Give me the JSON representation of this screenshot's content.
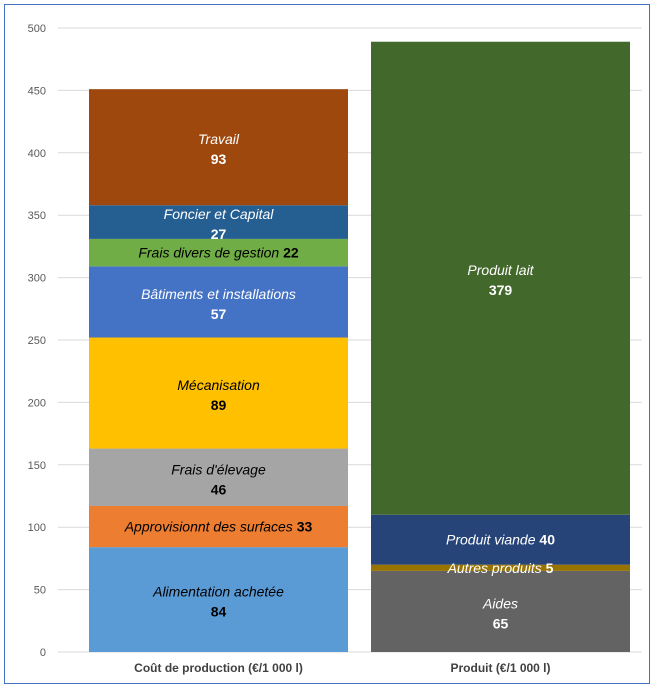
{
  "chart_data": {
    "type": "bar",
    "stacked": true,
    "categories": [
      "Coût de production (€/1 000 l)",
      "Produit (€/1 000 l)"
    ],
    "ylim": [
      0,
      500
    ],
    "yticks": [
      0,
      50,
      100,
      150,
      200,
      250,
      300,
      350,
      400,
      450,
      500
    ],
    "grid": true,
    "series": [
      {
        "stack": "Coût de production (€/1 000 l)",
        "segments": [
          {
            "label": "Alimentation achetée",
            "value": 84,
            "display": "84",
            "color": "#5b9bd5",
            "layout": "below",
            "text": "#000000"
          },
          {
            "label": "Approvisionnt des surfaces",
            "value": 33,
            "display": "33",
            "color": "#ed7d31",
            "layout": "inline",
            "text": "#000000"
          },
          {
            "label": "Frais d'élevage",
            "value": 46,
            "display": "46",
            "color": "#a5a5a5",
            "layout": "below",
            "text": "#000000"
          },
          {
            "label": "Mécanisation",
            "value": 89,
            "display": "89",
            "color": "#ffc000",
            "layout": "below",
            "text": "#000000"
          },
          {
            "label": "Bâtiments et installations",
            "value": 57,
            "display": "57",
            "color": "#4472c4",
            "layout": "below",
            "text": "#ffffff"
          },
          {
            "label": "Frais divers de gestion",
            "value": 22,
            "display": "22",
            "color": "#70ad47",
            "layout": "inline",
            "text": "#000000"
          },
          {
            "label": "Foncier et Capital",
            "value": 27,
            "display": "27",
            "color": "#255e91",
            "layout": "below",
            "text": "#ffffff"
          },
          {
            "label": "Travail",
            "value": 93,
            "display": "93",
            "color": "#9e480e",
            "layout": "below",
            "text": "#ffffff"
          }
        ]
      },
      {
        "stack": "Produit (€/1 000 l)",
        "segments": [
          {
            "label": "Aides",
            "value": 65,
            "display": "65",
            "color": "#636363",
            "layout": "below",
            "text": "#ffffff"
          },
          {
            "label": "Autres produits",
            "value": 5,
            "display": "5",
            "color": "#997300",
            "layout": "inline",
            "text": "#ffffff"
          },
          {
            "label": "Produit viande",
            "value": 40,
            "display": "40",
            "color": "#264478",
            "layout": "inline",
            "text": "#ffffff"
          },
          {
            "label": "Produit lait",
            "value": 379,
            "display": "379",
            "color": "#43682b",
            "layout": "below",
            "text": "#ffffff"
          }
        ]
      }
    ]
  }
}
